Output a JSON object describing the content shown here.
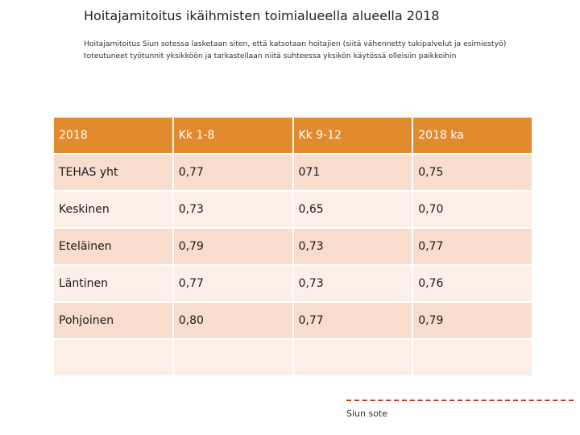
{
  "title": "Hoitajamitoitus ikäihmisten toimialueella alueella 2018",
  "subtitle": "Hoitajamitoitus Siun sotessa lasketaan siten, että katsotaan hoitajien (siitä vähennetty tukipalvelut ja esimiestyö)\ntoteutuneet työtunnit yksikköön ja tarkastellaan niitä suhteessa yksikön käytössä olleisiin paikkoihin",
  "table": {
    "headers": [
      "2018",
      "Kk 1-8",
      "Kk 9-12",
      "2018 ka"
    ],
    "rows": [
      [
        "TEHAS yht",
        "0,77",
        "071",
        "0,75"
      ],
      [
        "Keskinen",
        "0,73",
        "0,65",
        "0,70"
      ],
      [
        "Eteläinen",
        "0,79",
        "0,73",
        "0,77"
      ],
      [
        "Läntinen",
        "0,77",
        "0,73",
        "0,76"
      ],
      [
        "Pohjoinen",
        "0,80",
        "0,77",
        "0,79"
      ],
      [
        "",
        "",
        "",
        ""
      ]
    ]
  },
  "footer": "Siun sote",
  "colors": {
    "header_bg": "#e28a2e",
    "row_odd": "#f8dccd",
    "row_even": "#fbefe8",
    "dash": "#c0392b"
  }
}
